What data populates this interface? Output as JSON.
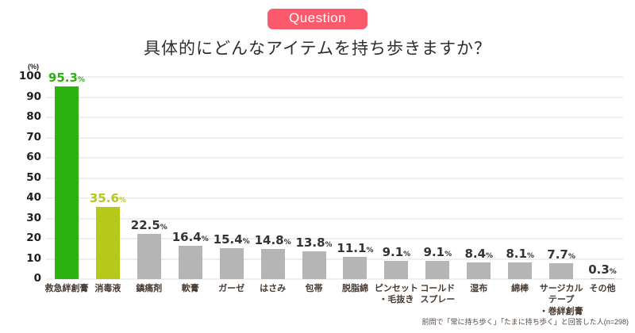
{
  "badge": {
    "label": "Question"
  },
  "title": "具体的にどんなアイテムを持ち歩きますか？",
  "footnote": "前問で「常に持ち歩く」「たまに持ち歩く」と回答した人(n=298)",
  "y_axis": {
    "unit_label": "(%)",
    "ticks": [
      100,
      90,
      80,
      70,
      60,
      50,
      40,
      30,
      20,
      10,
      0
    ]
  },
  "colors": {
    "badge_bg": "#fa5a6b",
    "highlight_green": "#2cb30f",
    "highlight_yellowgreen": "#b6c81a",
    "bar_gray": "#b5b5b5",
    "value_label_dark": "#383230"
  },
  "chart_data": {
    "type": "bar",
    "title": "具体的にどんなアイテムを持ち歩きますか？",
    "categories": [
      "救急絆創膏",
      "消毒液",
      "鎮痛剤",
      "軟膏",
      "ガーゼ",
      "はさみ",
      "包帯",
      "脱脂綿",
      "ピンセット\n・毛抜き",
      "コールド\nスプレー",
      "湿布",
      "綿棒",
      "サージカル\nテープ\n・巻絆創膏",
      "その他"
    ],
    "values": [
      95.3,
      35.6,
      22.5,
      16.4,
      15.4,
      14.8,
      13.8,
      11.1,
      9.1,
      9.1,
      8.4,
      8.1,
      7.7,
      0.3
    ],
    "bar_colors": [
      "#2cb30f",
      "#b6c81a",
      "#b5b5b5",
      "#b5b5b5",
      "#b5b5b5",
      "#b5b5b5",
      "#b5b5b5",
      "#b5b5b5",
      "#b5b5b5",
      "#b5b5b5",
      "#b5b5b5",
      "#b5b5b5",
      "#b5b5b5",
      "#b5b5b5"
    ],
    "value_label_colors": [
      "#2cb30f",
      "#b6c81a",
      "#383230",
      "#383230",
      "#383230",
      "#383230",
      "#383230",
      "#383230",
      "#383230",
      "#383230",
      "#383230",
      "#383230",
      "#383230",
      "#383230"
    ],
    "unit_suffix": "%",
    "xlabel": "",
    "ylabel": "(%)",
    "ylim": [
      0,
      100
    ],
    "grid": true,
    "legend": false
  }
}
